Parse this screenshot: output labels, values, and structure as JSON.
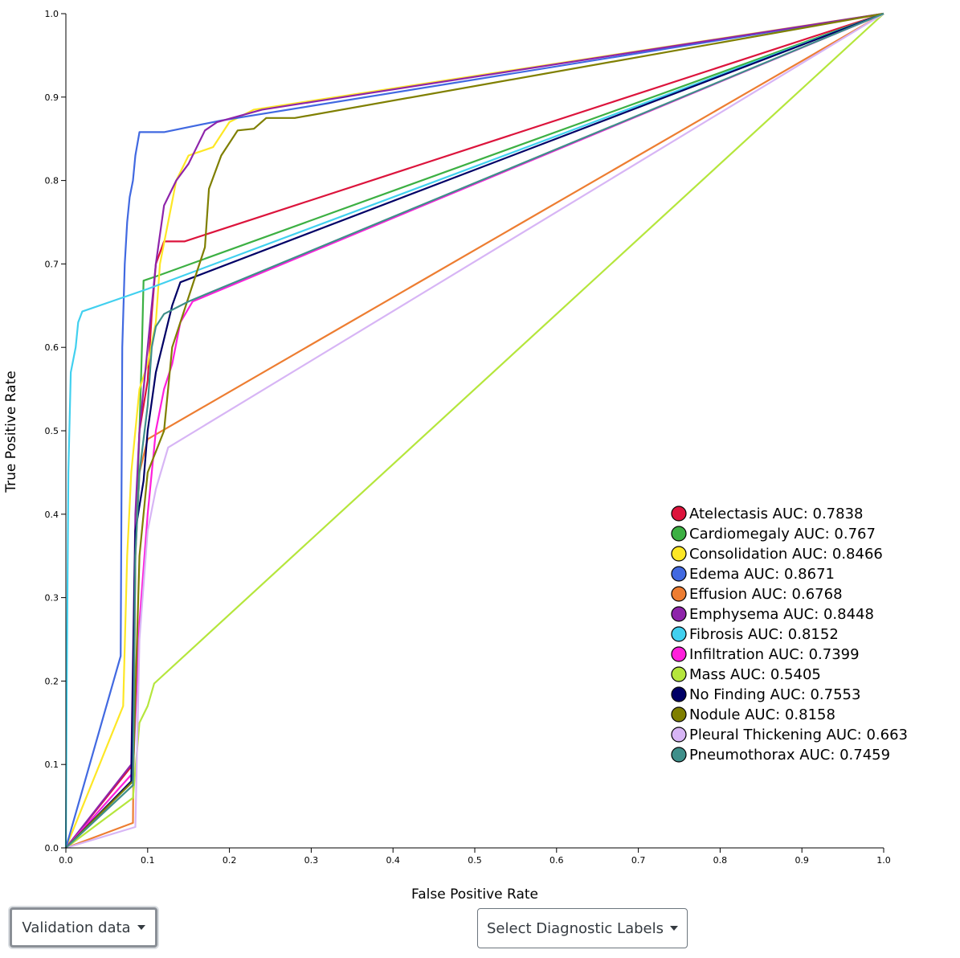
{
  "chart_data": {
    "type": "line",
    "xlabel": "False Positive Rate",
    "ylabel": "True Positive Rate",
    "xlim": [
      0,
      1
    ],
    "ylim": [
      0,
      1
    ],
    "xticks": [
      "0.0",
      "0.1",
      "0.2",
      "0.3",
      "0.4",
      "0.5",
      "0.6",
      "0.7",
      "0.8",
      "0.9",
      "1.0"
    ],
    "yticks": [
      "0.0",
      "0.1",
      "0.2",
      "0.3",
      "0.4",
      "0.5",
      "0.6",
      "0.7",
      "0.8",
      "0.9",
      "1.0"
    ],
    "grid": false,
    "legend_position": "bottom-right",
    "series": [
      {
        "name": "Atelectasis",
        "label": "Atelectasis AUC: 0.7838",
        "color": "#dc143c",
        "points": [
          [
            0,
            0
          ],
          [
            0.082,
            0.1
          ],
          [
            0.085,
            0.38
          ],
          [
            0.09,
            0.5
          ],
          [
            0.1,
            0.56
          ],
          [
            0.105,
            0.64
          ],
          [
            0.11,
            0.7
          ],
          [
            0.12,
            0.727
          ],
          [
            0.145,
            0.727
          ],
          [
            1,
            1
          ]
        ]
      },
      {
        "name": "Cardiomegaly",
        "label": "Cardiomegaly AUC: 0.767",
        "color": "#3cb043",
        "points": [
          [
            0,
            0
          ],
          [
            0.082,
            0.08
          ],
          [
            0.085,
            0.35
          ],
          [
            0.09,
            0.5
          ],
          [
            0.093,
            0.6
          ],
          [
            0.095,
            0.68
          ],
          [
            0.11,
            0.685
          ],
          [
            1,
            1
          ]
        ]
      },
      {
        "name": "Consolidation",
        "label": "Consolidation AUC: 0.8466",
        "color": "#fde725",
        "points": [
          [
            0,
            0
          ],
          [
            0.07,
            0.17
          ],
          [
            0.075,
            0.35
          ],
          [
            0.08,
            0.45
          ],
          [
            0.09,
            0.55
          ],
          [
            0.1,
            0.58
          ],
          [
            0.11,
            0.63
          ],
          [
            0.115,
            0.7
          ],
          [
            0.125,
            0.75
          ],
          [
            0.135,
            0.8
          ],
          [
            0.15,
            0.83
          ],
          [
            0.18,
            0.84
          ],
          [
            0.2,
            0.87
          ],
          [
            0.23,
            0.885
          ],
          [
            1,
            1
          ]
        ]
      },
      {
        "name": "Edema",
        "label": "Edema AUC: 0.8671",
        "color": "#4169e1",
        "points": [
          [
            0,
            0
          ],
          [
            0.067,
            0.23
          ],
          [
            0.069,
            0.6
          ],
          [
            0.072,
            0.7
          ],
          [
            0.075,
            0.75
          ],
          [
            0.078,
            0.78
          ],
          [
            0.082,
            0.8
          ],
          [
            0.085,
            0.83
          ],
          [
            0.09,
            0.858
          ],
          [
            0.12,
            0.858
          ],
          [
            0.19,
            0.872
          ],
          [
            1,
            1
          ]
        ]
      },
      {
        "name": "Effusion",
        "label": "Effusion AUC: 0.6768",
        "color": "#ed7d31",
        "points": [
          [
            0,
            0
          ],
          [
            0.082,
            0.03
          ],
          [
            0.085,
            0.35
          ],
          [
            0.09,
            0.45
          ],
          [
            0.1,
            0.49
          ],
          [
            1,
            1
          ]
        ]
      },
      {
        "name": "Emphysema",
        "label": "Emphysema AUC: 0.8448",
        "color": "#8e24aa",
        "points": [
          [
            0,
            0
          ],
          [
            0.08,
            0.1
          ],
          [
            0.085,
            0.4
          ],
          [
            0.09,
            0.5
          ],
          [
            0.1,
            0.6
          ],
          [
            0.11,
            0.7
          ],
          [
            0.12,
            0.77
          ],
          [
            0.135,
            0.8
          ],
          [
            0.15,
            0.82
          ],
          [
            0.17,
            0.86
          ],
          [
            0.185,
            0.87
          ],
          [
            0.24,
            0.885
          ],
          [
            1,
            1
          ]
        ]
      },
      {
        "name": "Fibrosis",
        "label": "Fibrosis AUC: 0.8152",
        "color": "#41d0ef",
        "points": [
          [
            0,
            0
          ],
          [
            0.001,
            0.18
          ],
          [
            0.003,
            0.45
          ],
          [
            0.006,
            0.57
          ],
          [
            0.012,
            0.6
          ],
          [
            0.015,
            0.63
          ],
          [
            0.02,
            0.643
          ],
          [
            0.1,
            0.67
          ],
          [
            1,
            1
          ]
        ]
      },
      {
        "name": "Infiltration",
        "label": "Infiltration AUC: 0.7399",
        "color": "#ff1fdb",
        "points": [
          [
            0,
            0
          ],
          [
            0.082,
            0.09
          ],
          [
            0.09,
            0.27
          ],
          [
            0.1,
            0.4
          ],
          [
            0.11,
            0.5
          ],
          [
            0.12,
            0.55
          ],
          [
            0.13,
            0.58
          ],
          [
            0.14,
            0.63
          ],
          [
            0.155,
            0.655
          ],
          [
            1,
            1
          ]
        ]
      },
      {
        "name": "Mass",
        "label": "Mass AUC: 0.5405",
        "color": "#b5e63c",
        "points": [
          [
            0,
            0
          ],
          [
            0.082,
            0.06
          ],
          [
            0.09,
            0.15
          ],
          [
            0.1,
            0.17
          ],
          [
            0.108,
            0.197
          ],
          [
            1,
            1
          ]
        ]
      },
      {
        "name": "No Finding",
        "label": "No Finding AUC: 0.7553",
        "color": "#000066",
        "points": [
          [
            0,
            0
          ],
          [
            0.08,
            0.08
          ],
          [
            0.085,
            0.38
          ],
          [
            0.095,
            0.44
          ],
          [
            0.1,
            0.5
          ],
          [
            0.11,
            0.57
          ],
          [
            0.12,
            0.61
          ],
          [
            0.13,
            0.65
          ],
          [
            0.14,
            0.678
          ],
          [
            1,
            1
          ]
        ]
      },
      {
        "name": "Nodule",
        "label": "Nodule AUC: 0.8158",
        "color": "#7f7f00",
        "points": [
          [
            0,
            0
          ],
          [
            0.082,
            0.08
          ],
          [
            0.09,
            0.35
          ],
          [
            0.1,
            0.45
          ],
          [
            0.12,
            0.5
          ],
          [
            0.13,
            0.6
          ],
          [
            0.15,
            0.66
          ],
          [
            0.17,
            0.72
          ],
          [
            0.175,
            0.79
          ],
          [
            0.19,
            0.83
          ],
          [
            0.21,
            0.86
          ],
          [
            0.23,
            0.862
          ],
          [
            0.245,
            0.875
          ],
          [
            0.28,
            0.875
          ],
          [
            1,
            1
          ]
        ]
      },
      {
        "name": "Pleural Thickening",
        "label": "Pleural Thickening AUC: 0.663",
        "color": "#d7b5f5",
        "points": [
          [
            0,
            0
          ],
          [
            0.085,
            0.025
          ],
          [
            0.09,
            0.25
          ],
          [
            0.1,
            0.38
          ],
          [
            0.11,
            0.43
          ],
          [
            0.125,
            0.48
          ],
          [
            1,
            1
          ]
        ]
      },
      {
        "name": "Pneumothorax",
        "label": "Pneumothorax AUC: 0.7459",
        "color": "#3f8f8a",
        "points": [
          [
            0,
            0
          ],
          [
            0.082,
            0.075
          ],
          [
            0.085,
            0.35
          ],
          [
            0.09,
            0.45
          ],
          [
            0.1,
            0.53
          ],
          [
            0.105,
            0.6
          ],
          [
            0.11,
            0.625
          ],
          [
            0.12,
            0.64
          ],
          [
            0.15,
            0.655
          ],
          [
            1,
            1
          ]
        ]
      }
    ]
  },
  "controls": {
    "dataset_button": "Validation data",
    "labels_button": "Select Diagnostic Labels"
  }
}
